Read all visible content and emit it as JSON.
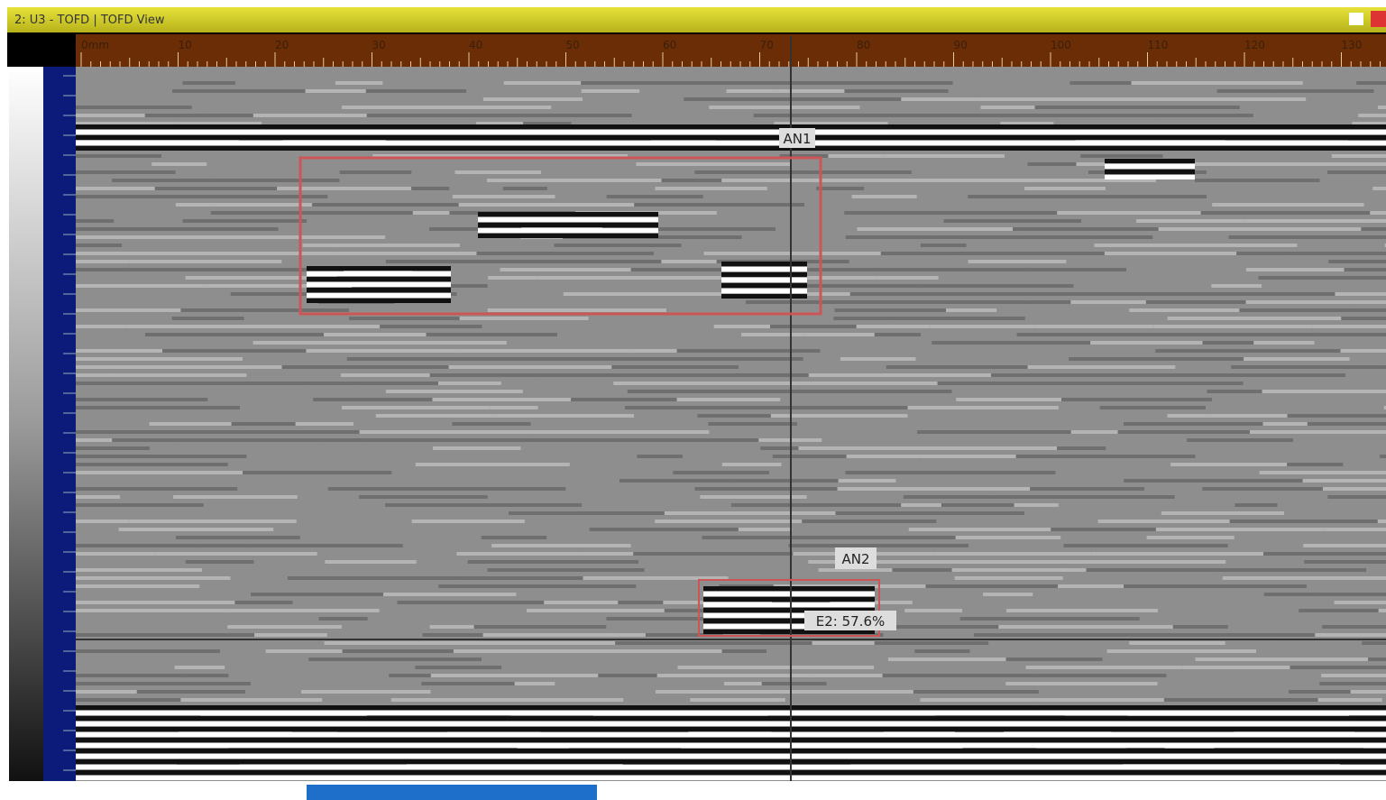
{
  "window": {
    "title": "2: U3 - TOFD | TOFD View"
  },
  "ruler": {
    "labels": [
      "0mm",
      "10",
      "20",
      "30",
      "40",
      "50",
      "60",
      "70",
      "80",
      "90",
      "100",
      "110",
      "120",
      "130"
    ]
  },
  "annotations": [
    {
      "label": "AN1"
    },
    {
      "label": "AN2"
    },
    {
      "label": "E2: 57.6%"
    }
  ]
}
